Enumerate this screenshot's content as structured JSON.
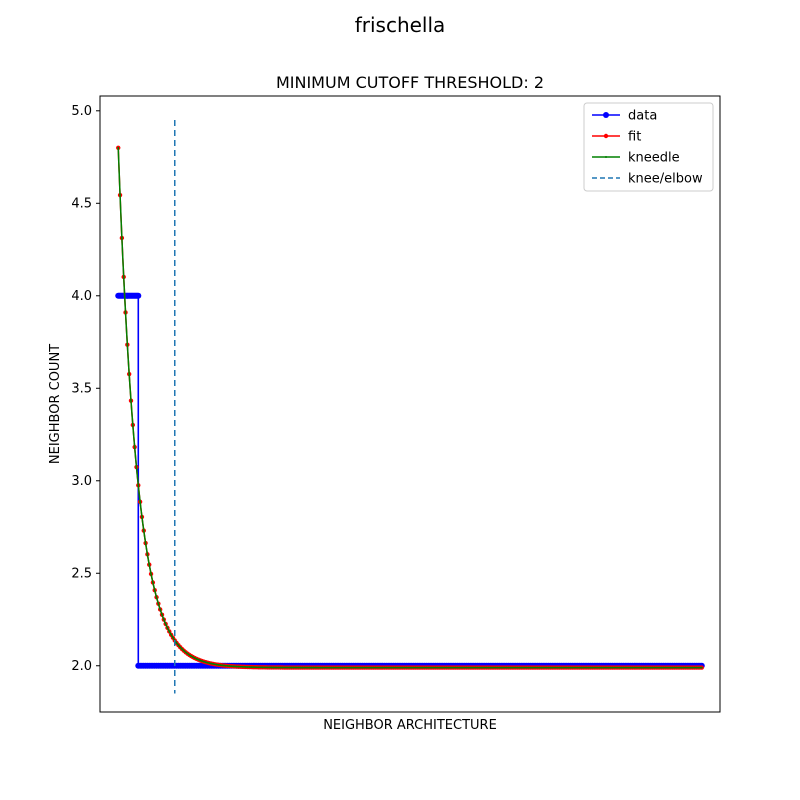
{
  "chart_data": {
    "type": "line",
    "suptitle": "frischella",
    "title": "MINIMUM CUTOFF THRESHOLD: 2",
    "xlabel": "NEIGHBOR ARCHITECTURE",
    "ylabel": "NEIGHBOR COUNT",
    "ylim": [
      1.75,
      5.08
    ],
    "yticks": [
      "2.0",
      "2.5",
      "3.0",
      "3.5",
      "4.0",
      "4.5",
      "5.0"
    ],
    "ytick_values": [
      2.0,
      2.5,
      3.0,
      3.5,
      4.0,
      4.5,
      5.0
    ],
    "xlim": [
      -10,
      330
    ],
    "grid": false,
    "legend_position": "top-right",
    "legend": [
      {
        "label": "data",
        "color": "#0000ff",
        "style": "line-marker"
      },
      {
        "label": "fit",
        "color": "#ff0000",
        "style": "line-marker-small"
      },
      {
        "label": "kneedle",
        "color": "#008000",
        "style": "line-dot"
      },
      {
        "label": "knee/elbow",
        "color": "#1f77b4",
        "style": "dashed"
      }
    ],
    "series": [
      {
        "name": "data",
        "color": "#0000ff",
        "segments": [
          {
            "x_start": 0,
            "x_end": 11,
            "y": 4.0
          },
          {
            "x_start": 11,
            "x_end": 320,
            "y": 2.0
          }
        ]
      },
      {
        "name": "fit",
        "color": "#ff0000",
        "model": "exponential decay",
        "start": 4.8,
        "asymptote": 1.99,
        "decay_scale": 10.5,
        "x_range": [
          0,
          320
        ]
      },
      {
        "name": "kneedle",
        "color": "#008000",
        "x_range": [
          0,
          320
        ]
      }
    ],
    "knee_x": 31,
    "knee_y_range": [
      1.85,
      4.95
    ]
  },
  "colors": {
    "data": "#0000ff",
    "fit": "#ff0000",
    "kneedle": "#008000",
    "knee": "#1f77b4"
  }
}
